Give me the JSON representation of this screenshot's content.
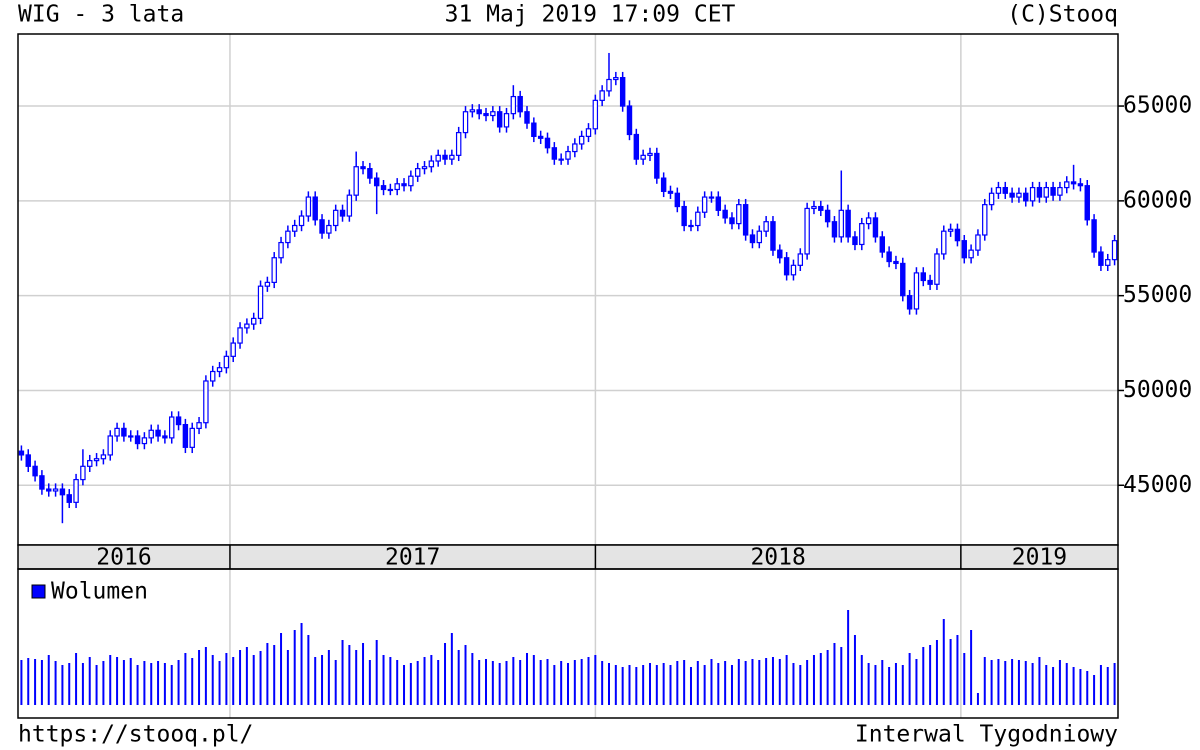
{
  "chart_data": {
    "type": "candlestick",
    "title": "WIG - 3 lata",
    "subtitle": "31 Maj 2019 17:09 CET",
    "source": "(C)Stooq",
    "url": "https://stooq.pl/",
    "interval": "Interwal Tygodniowy",
    "color": "#0000ff",
    "ylim": [
      41850,
      68800
    ],
    "yticks": [
      45000,
      50000,
      55000,
      60000,
      65000
    ],
    "xlim": [
      2016.42,
      2019.43
    ],
    "year_starts": [
      2017,
      2018,
      2019
    ],
    "year_labels": [
      "2016",
      "2017",
      "2018",
      "2019"
    ],
    "open": [
      46800,
      46600,
      46000,
      45500,
      44800,
      44700,
      44800,
      44500,
      44100,
      45300,
      46000,
      46300,
      46400,
      46600,
      47600,
      48000,
      47600,
      47600,
      47200,
      47500,
      47900,
      47600,
      47500,
      48600,
      48200,
      47000,
      48000,
      48300,
      50500,
      51000,
      51200,
      51800,
      52500,
      53300,
      53500,
      53800,
      55500,
      55700,
      57000,
      57800,
      58400,
      58700,
      59200,
      60200,
      59000,
      58300,
      58700,
      59500,
      59200,
      60300,
      61800,
      61700,
      61200,
      60800,
      60600,
      60600,
      60900,
      60800,
      61300,
      61700,
      61800,
      62100,
      62400,
      62200,
      62400,
      63600,
      64700,
      64800,
      64600,
      64500,
      64700,
      63900,
      64600,
      65500,
      64700,
      64100,
      63400,
      63300,
      62800,
      62200,
      62200,
      62600,
      63000,
      63400,
      63800,
      65300,
      65800,
      66400,
      66500,
      65000,
      63500,
      62200,
      62400,
      62500,
      61200,
      60500,
      60400,
      59700,
      58700,
      58700,
      59400,
      60200,
      60200,
      59500,
      59100,
      58800,
      59800,
      58200,
      57800,
      58400,
      58900,
      57400,
      57000,
      56100,
      56600,
      57200,
      59600,
      59700,
      59500,
      58900,
      58100,
      59500,
      58100,
      57700,
      58800,
      59100,
      58100,
      57300,
      56800,
      56700,
      55000,
      54300,
      56200,
      55800,
      55600,
      57200,
      58400,
      58500,
      57900,
      57000,
      57400,
      58200,
      59800,
      60400,
      60700,
      60400,
      60200,
      60400,
      60000,
      60700,
      60200,
      60700,
      60300,
      60700,
      61000,
      60900,
      60800,
      59000,
      57300,
      56600,
      56900
    ],
    "high": [
      47100,
      46900,
      46300,
      45800,
      45100,
      45100,
      45100,
      44800,
      45600,
      46900,
      46600,
      46700,
      46900,
      47900,
      48300,
      48300,
      47900,
      47900,
      47800,
      48200,
      48200,
      47900,
      48900,
      48900,
      48500,
      48300,
      48600,
      50800,
      51300,
      51500,
      52100,
      52800,
      53600,
      53800,
      54100,
      55800,
      56000,
      57300,
      58100,
      58700,
      59000,
      59500,
      60500,
      60500,
      59300,
      59000,
      59800,
      59800,
      60600,
      62600,
      62100,
      62000,
      61500,
      61100,
      60900,
      61200,
      61200,
      61600,
      62000,
      62100,
      62400,
      62700,
      62700,
      62700,
      63900,
      65000,
      65100,
      65100,
      64900,
      65000,
      65000,
      64900,
      66100,
      65800,
      65000,
      64400,
      63700,
      63600,
      63100,
      62500,
      62900,
      63300,
      63700,
      64100,
      65600,
      66100,
      67800,
      66800,
      66800,
      65300,
      63800,
      62700,
      62800,
      62800,
      61500,
      60800,
      60700,
      60000,
      59000,
      59700,
      60500,
      60500,
      60500,
      59800,
      59400,
      60100,
      60100,
      58500,
      58700,
      59200,
      59200,
      57700,
      57300,
      56900,
      57500,
      59900,
      60000,
      60000,
      59800,
      59200,
      61600,
      59800,
      58400,
      59100,
      59400,
      59400,
      58400,
      57600,
      57100,
      57000,
      55300,
      56500,
      56500,
      56100,
      57500,
      58700,
      58800,
      58800,
      58200,
      57700,
      58500,
      60100,
      60700,
      61000,
      61000,
      60700,
      60700,
      60700,
      61000,
      61000,
      61000,
      61000,
      61000,
      61300,
      61900,
      61200,
      61100,
      59300,
      57600,
      57200,
      58200
    ],
    "low": [
      46300,
      45700,
      45200,
      44500,
      44400,
      44400,
      43000,
      43800,
      43800,
      45000,
      45700,
      46000,
      46100,
      46300,
      47300,
      47300,
      47300,
      46900,
      46900,
      47200,
      47300,
      47200,
      47200,
      47900,
      46700,
      46700,
      47700,
      48000,
      50200,
      50700,
      50900,
      51500,
      52200,
      53000,
      53200,
      53500,
      55200,
      55400,
      56700,
      57500,
      58100,
      58400,
      58900,
      58700,
      58000,
      58000,
      58400,
      58900,
      58900,
      60000,
      61400,
      60900,
      59300,
      60300,
      60300,
      60300,
      60500,
      60500,
      61000,
      61400,
      61500,
      61800,
      61900,
      61900,
      62100,
      63300,
      64400,
      64300,
      64200,
      64200,
      63600,
      63600,
      64300,
      64400,
      63800,
      63100,
      63000,
      62500,
      61900,
      61900,
      61900,
      62300,
      62700,
      63100,
      63500,
      65000,
      65500,
      66100,
      64700,
      63200,
      61900,
      61900,
      62100,
      60900,
      60200,
      60100,
      59400,
      58400,
      58400,
      58400,
      59100,
      59900,
      59200,
      58800,
      58500,
      58500,
      57900,
      57500,
      57500,
      58100,
      57100,
      56700,
      55800,
      55800,
      56300,
      56900,
      59300,
      59200,
      58600,
      57800,
      57800,
      57800,
      57400,
      57400,
      58500,
      57800,
      57000,
      56500,
      56400,
      54700,
      54000,
      54000,
      55500,
      55300,
      55300,
      56900,
      58100,
      57600,
      56700,
      56700,
      57100,
      57900,
      59500,
      60100,
      60100,
      59900,
      59900,
      59700,
      59700,
      59900,
      59900,
      60000,
      60000,
      60400,
      60600,
      60500,
      58700,
      57000,
      56300,
      56300,
      56600
    ],
    "close": [
      46600,
      46000,
      45500,
      44800,
      44700,
      44800,
      44500,
      44100,
      45300,
      46000,
      46300,
      46400,
      46600,
      47600,
      48000,
      47600,
      47600,
      47200,
      47500,
      47900,
      47600,
      47500,
      48600,
      48200,
      47000,
      48000,
      48300,
      50500,
      51000,
      51200,
      51800,
      52500,
      53300,
      53500,
      53800,
      55500,
      55700,
      57000,
      57800,
      58400,
      58700,
      59200,
      60200,
      59000,
      58300,
      58700,
      59500,
      59200,
      60300,
      61800,
      61700,
      61200,
      60800,
      60600,
      60600,
      60900,
      60800,
      61300,
      61700,
      61800,
      62100,
      62400,
      62200,
      62400,
      63600,
      64700,
      64800,
      64600,
      64500,
      64700,
      63900,
      64600,
      65500,
      64700,
      64100,
      63400,
      63300,
      62800,
      62200,
      62200,
      62600,
      63000,
      63400,
      63800,
      65300,
      65800,
      66400,
      66500,
      65000,
      63500,
      62200,
      62400,
      62500,
      61200,
      60500,
      60400,
      59700,
      58700,
      58700,
      59400,
      60200,
      60200,
      59500,
      59100,
      58800,
      59800,
      58200,
      57800,
      58400,
      58900,
      57400,
      57000,
      56100,
      56600,
      57200,
      59600,
      59700,
      59500,
      58900,
      58100,
      59500,
      58100,
      57700,
      58800,
      59100,
      58100,
      57300,
      56800,
      56700,
      55000,
      54300,
      56200,
      55800,
      55600,
      57200,
      58400,
      58500,
      57900,
      57000,
      57400,
      58200,
      59800,
      60400,
      60700,
      60400,
      60200,
      60400,
      60000,
      60700,
      60200,
      60700,
      60300,
      60700,
      61000,
      60900,
      60800,
      59000,
      57300,
      56600,
      56900,
      57900
    ],
    "volume": {
      "name": "Wolumen",
      "color": "#0000ff",
      "values": [
        45,
        47,
        46,
        45,
        50,
        44,
        40,
        42,
        52,
        42,
        48,
        40,
        44,
        50,
        48,
        45,
        47,
        40,
        44,
        42,
        44,
        42,
        40,
        45,
        52,
        47,
        55,
        58,
        50,
        44,
        52,
        48,
        55,
        58,
        50,
        54,
        62,
        60,
        72,
        55,
        75,
        82,
        70,
        48,
        50,
        55,
        45,
        65,
        60,
        55,
        62,
        45,
        65,
        50,
        48,
        45,
        40,
        42,
        44,
        48,
        50,
        45,
        62,
        72,
        55,
        60,
        52,
        45,
        46,
        44,
        42,
        44,
        48,
        45,
        52,
        50,
        45,
        46,
        40,
        44,
        42,
        45,
        46,
        48,
        50,
        44,
        42,
        40,
        38,
        40,
        38,
        40,
        42,
        40,
        42,
        40,
        44,
        45,
        38,
        44,
        40,
        46,
        42,
        44,
        40,
        46,
        44,
        46,
        45,
        47,
        48,
        46,
        50,
        42,
        40,
        45,
        50,
        52,
        55,
        62,
        58,
        95,
        70,
        50,
        42,
        40,
        45,
        38,
        42,
        40,
        52,
        46,
        58,
        60,
        65,
        86,
        66,
        70,
        52,
        75,
        12,
        48,
        45,
        46,
        44,
        46,
        45,
        44,
        42,
        48,
        40,
        38,
        45,
        42,
        38,
        36,
        34,
        30,
        40,
        38,
        42
      ]
    }
  }
}
